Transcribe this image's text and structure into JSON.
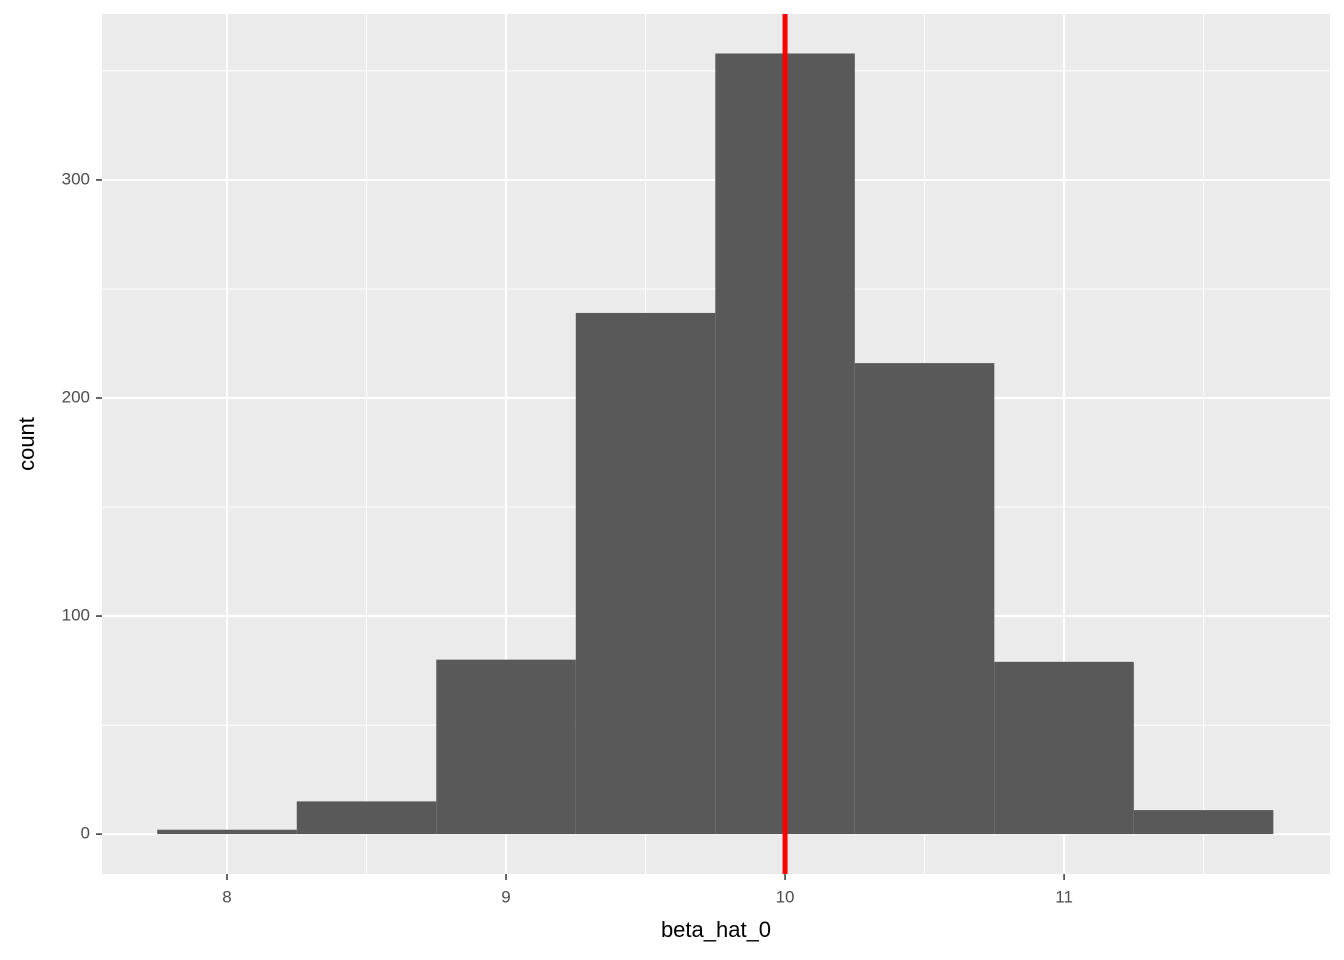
{
  "chart_data": {
    "type": "histogram",
    "bins": [
      7.75,
      8.25,
      8.75,
      9.25,
      9.75,
      10.25,
      10.75,
      11.25,
      11.75
    ],
    "values": [
      2,
      15,
      80,
      239,
      358,
      216,
      79,
      11
    ],
    "color": "#595959",
    "x_label": "beta_hat_0",
    "y_label": "count",
    "xlim": [
      7.552,
      11.953
    ],
    "ylim": [
      -18.3,
      376.1
    ],
    "xticks": [
      8,
      9,
      10,
      11
    ],
    "yticks": [
      0,
      100,
      200,
      300
    ],
    "xminor": [
      8.5,
      9.5,
      10.5,
      11.5
    ],
    "yminor": [
      50,
      150,
      250,
      350
    ],
    "grid": true,
    "vline": {
      "value": 10,
      "color": "#ff0000"
    }
  }
}
